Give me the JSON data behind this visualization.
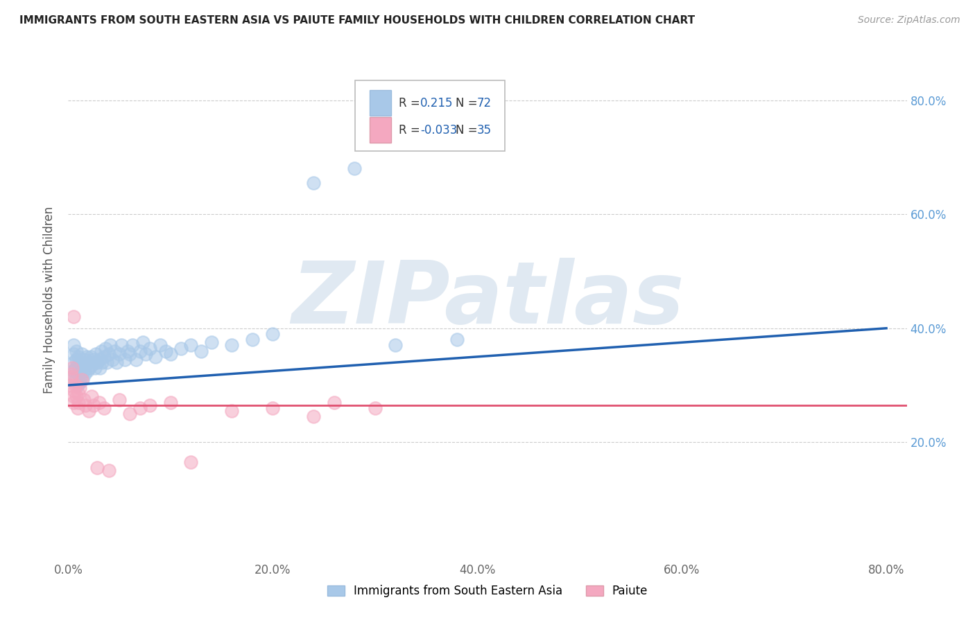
{
  "title": "IMMIGRANTS FROM SOUTH EASTERN ASIA VS PAIUTE FAMILY HOUSEHOLDS WITH CHILDREN CORRELATION CHART",
  "source": "Source: ZipAtlas.com",
  "ylabel": "Family Households with Children",
  "xlim": [
    0.0,
    0.82
  ],
  "ylim": [
    0.0,
    0.9
  ],
  "xticks": [
    0.0,
    0.2,
    0.4,
    0.6,
    0.8
  ],
  "xticklabels": [
    "0.0%",
    "20.0%",
    "40.0%",
    "60.0%",
    "80.0%"
  ],
  "ytick_positions": [
    0.2,
    0.4,
    0.6,
    0.8
  ],
  "yticklabels_right": [
    "20.0%",
    "40.0%",
    "60.0%",
    "80.0%"
  ],
  "blue_R": 0.215,
  "blue_N": 72,
  "pink_R": -0.033,
  "pink_N": 35,
  "blue_color": "#a8c8e8",
  "pink_color": "#f4a8c0",
  "blue_line_color": "#2060b0",
  "pink_line_color": "#e05070",
  "watermark": "ZIPatlas",
  "watermark_color": "#c8d8e8",
  "legend_label_blue": "Immigrants from South Eastern Asia",
  "legend_label_pink": "Paiute",
  "blue_points_x": [
    0.003,
    0.005,
    0.005,
    0.005,
    0.005,
    0.007,
    0.007,
    0.008,
    0.008,
    0.009,
    0.01,
    0.01,
    0.01,
    0.011,
    0.011,
    0.012,
    0.012,
    0.013,
    0.013,
    0.014,
    0.015,
    0.015,
    0.016,
    0.017,
    0.018,
    0.019,
    0.02,
    0.021,
    0.022,
    0.023,
    0.025,
    0.026,
    0.027,
    0.028,
    0.03,
    0.031,
    0.032,
    0.033,
    0.035,
    0.036,
    0.038,
    0.04,
    0.041,
    0.043,
    0.045,
    0.047,
    0.05,
    0.052,
    0.055,
    0.058,
    0.06,
    0.063,
    0.066,
    0.07,
    0.073,
    0.076,
    0.08,
    0.085,
    0.09,
    0.095,
    0.1,
    0.11,
    0.12,
    0.13,
    0.14,
    0.16,
    0.18,
    0.2,
    0.24,
    0.28,
    0.32,
    0.38
  ],
  "blue_points_y": [
    0.315,
    0.325,
    0.34,
    0.355,
    0.37,
    0.31,
    0.33,
    0.345,
    0.36,
    0.3,
    0.32,
    0.335,
    0.35,
    0.305,
    0.325,
    0.315,
    0.34,
    0.33,
    0.355,
    0.31,
    0.325,
    0.345,
    0.32,
    0.335,
    0.35,
    0.325,
    0.34,
    0.33,
    0.35,
    0.335,
    0.345,
    0.33,
    0.355,
    0.34,
    0.345,
    0.33,
    0.36,
    0.34,
    0.35,
    0.365,
    0.34,
    0.355,
    0.37,
    0.345,
    0.36,
    0.34,
    0.355,
    0.37,
    0.345,
    0.36,
    0.355,
    0.37,
    0.345,
    0.36,
    0.375,
    0.355,
    0.365,
    0.35,
    0.37,
    0.36,
    0.355,
    0.365,
    0.37,
    0.36,
    0.375,
    0.37,
    0.38,
    0.39,
    0.655,
    0.68,
    0.37,
    0.38
  ],
  "pink_points_x": [
    0.002,
    0.003,
    0.003,
    0.004,
    0.005,
    0.005,
    0.005,
    0.006,
    0.007,
    0.008,
    0.009,
    0.01,
    0.01,
    0.011,
    0.013,
    0.015,
    0.017,
    0.02,
    0.023,
    0.025,
    0.028,
    0.03,
    0.035,
    0.04,
    0.05,
    0.06,
    0.07,
    0.08,
    0.1,
    0.12,
    0.16,
    0.2,
    0.24,
    0.26,
    0.3
  ],
  "pink_points_y": [
    0.3,
    0.32,
    0.315,
    0.33,
    0.42,
    0.27,
    0.28,
    0.29,
    0.3,
    0.28,
    0.26,
    0.27,
    0.285,
    0.295,
    0.31,
    0.275,
    0.265,
    0.255,
    0.28,
    0.265,
    0.155,
    0.27,
    0.26,
    0.15,
    0.275,
    0.25,
    0.26,
    0.265,
    0.27,
    0.165,
    0.255,
    0.26,
    0.245,
    0.27,
    0.26
  ],
  "blue_trend_x": [
    0.0,
    0.8
  ],
  "blue_trend_y_start": 0.3,
  "blue_trend_y_end": 0.4,
  "pink_trend_y": 0.265
}
